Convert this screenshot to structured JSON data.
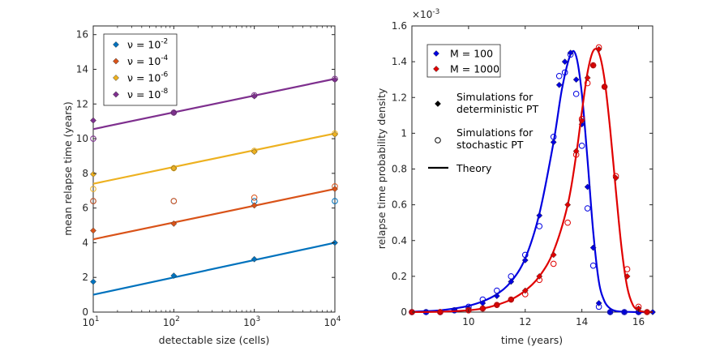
{
  "chart_data": [
    {
      "type": "line",
      "xscale": "log",
      "xlabel": "detectable size (cells)",
      "ylabel": "mean relapse time (years)",
      "xlim": [
        10,
        10000
      ],
      "ylim": [
        0,
        16.5
      ],
      "xticks": [
        10,
        100,
        1000,
        10000
      ],
      "xtick_base": "10",
      "xtick_exponents": [
        "1",
        "2",
        "3",
        "4"
      ],
      "yticks": [
        "0",
        "2",
        "4",
        "6",
        "8",
        "10",
        "12",
        "14",
        "16"
      ],
      "legend": {
        "position": "top-left",
        "prefix": "ν = 10",
        "exponents": [
          "-2",
          "-4",
          "-6",
          "-8"
        ]
      },
      "series": [
        {
          "name": "ν = 10^-2",
          "color": "#0072BD",
          "theory": {
            "x": [
              10,
              10000
            ],
            "y": [
              1.0,
              4.0
            ]
          },
          "deterministic": {
            "x": [
              10,
              100,
              1000,
              10000
            ],
            "y": [
              1.75,
              2.1,
              3.05,
              4.0
            ]
          },
          "stochastic": {
            "x": [
              10,
              100,
              1000,
              10000
            ],
            "y": [
              6.4,
              6.4,
              6.4,
              6.4
            ]
          }
        },
        {
          "name": "ν = 10^-4",
          "color": "#D95319",
          "theory": {
            "x": [
              10,
              10000
            ],
            "y": [
              4.2,
              7.1
            ]
          },
          "deterministic": {
            "x": [
              10,
              100,
              1000,
              10000
            ],
            "y": [
              4.7,
              5.1,
              6.15,
              7.1
            ]
          },
          "stochastic": {
            "x": [
              10,
              100,
              1000,
              10000
            ],
            "y": [
              6.4,
              6.4,
              6.6,
              7.25
            ]
          }
        },
        {
          "name": "ν = 10^-6",
          "color": "#EDB120",
          "theory": {
            "x": [
              10,
              10000
            ],
            "y": [
              7.4,
              10.3
            ]
          },
          "deterministic": {
            "x": [
              10,
              100,
              1000,
              10000
            ],
            "y": [
              7.95,
              8.3,
              9.25,
              10.25
            ]
          },
          "stochastic": {
            "x": [
              10,
              100,
              1000,
              10000
            ],
            "y": [
              7.1,
              8.3,
              9.3,
              10.3
            ]
          }
        },
        {
          "name": "ν = 10^-8",
          "color": "#7E2F8E",
          "theory": {
            "x": [
              10,
              10000
            ],
            "y": [
              10.55,
              13.45
            ]
          },
          "deterministic": {
            "x": [
              10,
              100,
              1000,
              10000
            ],
            "y": [
              11.05,
              11.5,
              12.45,
              13.4
            ]
          },
          "stochastic": {
            "x": [
              10,
              100,
              1000,
              10000
            ],
            "y": [
              10.0,
              11.5,
              12.5,
              13.45
            ]
          }
        }
      ]
    },
    {
      "type": "line",
      "xlabel": "time (years)",
      "ylabel": "relapse time probability density",
      "xlim": [
        8,
        16.5
      ],
      "ylim": [
        0,
        1.6
      ],
      "xticks": [
        10,
        12,
        14,
        16
      ],
      "yticks": [
        0,
        0.2,
        0.4,
        0.6,
        0.8,
        1,
        1.2,
        1.4,
        1.6
      ],
      "ytick_labels": [
        "0",
        "0.2",
        "0.4",
        "0.6",
        "0.8",
        "1",
        "1.2",
        "1.4",
        "1.6"
      ],
      "y_multiplier": {
        "base": "×10",
        "exponent": "-3"
      },
      "legend": {
        "position": "top-left",
        "entries": [
          "M = 100",
          "M = 1000"
        ],
        "markers": [
          [
            "Simulations for",
            "deterministic PT"
          ],
          [
            "Simulations for",
            "stochastic PT"
          ]
        ],
        "theory": "Theory"
      },
      "series": [
        {
          "name": "M = 100",
          "color": "#0000E0",
          "theory": {
            "x": [
              8.0,
              8.5,
              9.0,
              9.5,
              10.0,
              10.5,
              11.0,
              11.5,
              12.0,
              12.5,
              13.0,
              13.3,
              13.6,
              13.8,
              14.0,
              14.2,
              14.4,
              14.6,
              14.8,
              15.0,
              15.2,
              15.5,
              16.0,
              16.5
            ],
            "y": [
              0.002,
              0.005,
              0.01,
              0.02,
              0.035,
              0.06,
              0.1,
              0.17,
              0.3,
              0.55,
              0.95,
              1.25,
              1.44,
              1.43,
              1.22,
              0.85,
              0.45,
              0.17,
              0.06,
              0.02,
              0.006,
              0.002,
              0.0,
              0.0
            ]
          },
          "deterministic": {
            "x": [
              8.0,
              8.5,
              9.0,
              9.5,
              10.0,
              10.5,
              11.0,
              11.5,
              12.0,
              12.5,
              13.0,
              13.2,
              13.4,
              13.6,
              13.8,
              14.0,
              14.2,
              14.4,
              14.6,
              15.0,
              15.5,
              16.0,
              16.5
            ],
            "y": [
              0.0,
              0.0,
              0.0,
              0.01,
              0.02,
              0.05,
              0.09,
              0.17,
              0.29,
              0.54,
              0.95,
              1.27,
              1.4,
              1.45,
              1.3,
              1.05,
              0.7,
              0.36,
              0.05,
              0.0,
              0.0,
              0.0,
              0.0
            ]
          },
          "stochastic": {
            "x": [
              8.0,
              8.5,
              9.0,
              9.5,
              10.0,
              10.5,
              11.0,
              11.5,
              12.0,
              12.5,
              13.0,
              13.2,
              13.4,
              13.6,
              13.8,
              14.0,
              14.2,
              14.4,
              14.6,
              15.0,
              15.5,
              16.0
            ],
            "y": [
              0.0,
              0.0,
              0.0,
              0.01,
              0.03,
              0.07,
              0.12,
              0.2,
              0.32,
              0.48,
              0.98,
              1.32,
              1.34,
              1.44,
              1.22,
              0.93,
              0.58,
              0.26,
              0.03,
              0.0,
              0.0,
              0.0
            ]
          }
        },
        {
          "name": "M = 1000",
          "color": "#E00000",
          "theory": {
            "x": [
              8.0,
              9.0,
              10.0,
              10.5,
              11.0,
              11.5,
              12.0,
              12.5,
              13.0,
              13.5,
              13.8,
              14.0,
              14.2,
              14.4,
              14.6,
              14.8,
              15.0,
              15.2,
              15.4,
              15.6,
              15.8,
              16.0,
              16.2,
              16.5
            ],
            "y": [
              0.0,
              0.002,
              0.01,
              0.02,
              0.04,
              0.07,
              0.12,
              0.2,
              0.34,
              0.6,
              0.88,
              1.12,
              1.34,
              1.46,
              1.45,
              1.3,
              1.02,
              0.68,
              0.36,
              0.14,
              0.04,
              0.01,
              0.002,
              0.0
            ]
          },
          "deterministic": {
            "x": [
              8.0,
              9.0,
              10.0,
              10.5,
              11.0,
              11.5,
              12.0,
              12.5,
              13.0,
              13.5,
              13.8,
              14.0,
              14.2,
              14.4,
              14.6,
              14.8,
              15.2,
              15.6,
              16.0,
              16.3
            ],
            "y": [
              0.0,
              0.0,
              0.01,
              0.02,
              0.04,
              0.07,
              0.12,
              0.2,
              0.32,
              0.6,
              0.9,
              1.07,
              1.31,
              1.38,
              1.47,
              1.26,
              0.75,
              0.2,
              0.02,
              0.0
            ]
          },
          "stochastic": {
            "x": [
              8.0,
              9.0,
              10.0,
              10.5,
              11.0,
              11.5,
              12.0,
              12.5,
              13.0,
              13.5,
              13.8,
              14.0,
              14.2,
              14.4,
              14.6,
              14.8,
              15.2,
              15.6,
              16.0,
              16.3
            ],
            "y": [
              0.0,
              0.0,
              0.01,
              0.02,
              0.04,
              0.07,
              0.1,
              0.18,
              0.27,
              0.5,
              0.88,
              1.08,
              1.28,
              1.38,
              1.48,
              1.26,
              0.76,
              0.24,
              0.03,
              0.0
            ]
          }
        }
      ]
    }
  ]
}
